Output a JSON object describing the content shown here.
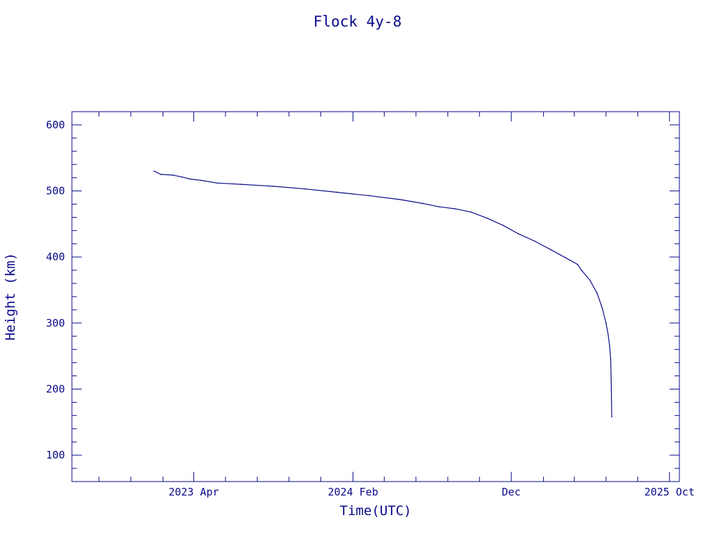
{
  "chart_data": {
    "type": "line",
    "title": "Flock 4y-8",
    "xlabel": "Time(UTC)",
    "ylabel": "Height (km)",
    "x_unit": "date",
    "xlim": [
      "2022-08-10",
      "2025-10-20"
    ],
    "ylim": [
      60,
      620
    ],
    "x_ticks": [
      {
        "label": "2023 Apr",
        "date": "2023-04-01"
      },
      {
        "label": "2024 Feb",
        "date": "2024-02-01"
      },
      {
        "label": "Dec",
        "date": "2024-12-01"
      },
      {
        "label": "2025 Oct",
        "date": "2025-10-01"
      }
    ],
    "x_minor_ticks": [
      "2022-10-01",
      "2022-12-01",
      "2023-02-01",
      "2023-06-01",
      "2023-08-01",
      "2023-10-01",
      "2023-12-01",
      "2024-04-01",
      "2024-06-01",
      "2024-08-01",
      "2024-10-01",
      "2025-02-01",
      "2025-04-01",
      "2025-06-01",
      "2025-08-01"
    ],
    "y_ticks": [
      100,
      200,
      300,
      400,
      500,
      600
    ],
    "y_minor_step": 20,
    "grid": false,
    "color": "#0a0a8a",
    "series": [
      {
        "x": [
          "2023-01-15",
          "2023-01-28",
          "2023-02-20",
          "2023-03-10",
          "2023-03-25",
          "2023-04-15",
          "2023-05-15",
          "2023-07-01",
          "2023-09-01",
          "2023-11-01",
          "2024-01-01",
          "2024-03-01",
          "2024-05-01",
          "2024-06-15",
          "2024-07-15",
          "2024-08-15",
          "2024-09-15",
          "2024-10-15",
          "2024-11-15",
          "2024-12-15",
          "2025-01-15",
          "2025-02-15",
          "2025-03-15",
          "2025-04-07",
          "2025-04-15",
          "2025-05-01",
          "2025-05-15",
          "2025-05-25",
          "2025-06-01",
          "2025-06-05",
          "2025-06-08",
          "2025-06-10",
          "2025-06-11",
          "2025-06-12"
        ],
        "y": [
          530,
          525,
          524,
          521,
          518,
          516,
          512,
          510,
          507,
          503,
          498,
          493,
          487,
          481,
          476,
          473,
          468,
          459,
          448,
          435,
          424,
          411,
          399,
          389,
          380,
          365,
          345,
          322,
          300,
          283,
          265,
          245,
          215,
          158
        ]
      }
    ]
  }
}
